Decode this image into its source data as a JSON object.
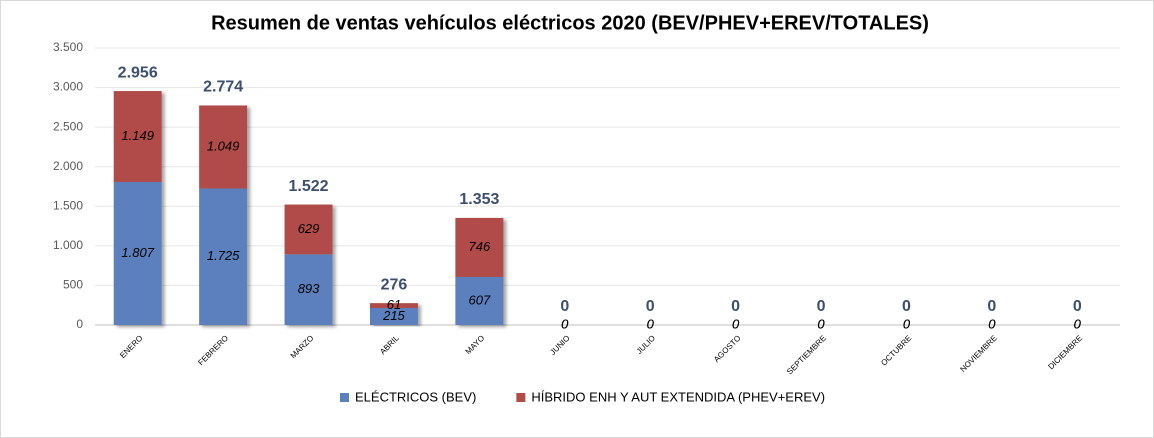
{
  "chart_data": {
    "type": "stacked_bar",
    "title": "Resumen de ventas vehículos eléctricos 2020 (BEV/PHEV+EREV/TOTALES)",
    "categories": [
      "ENERO",
      "FEBRERO",
      "MARZO",
      "ABRIL",
      "MAYO",
      "JUNIO",
      "JULIO",
      "AGOSTO",
      "SEPTIEMBRE",
      "OCTUBRE",
      "NOVIEMBRE",
      "DICIEMBRE"
    ],
    "series": [
      {
        "name": "ELÉCTRICOS (BEV)",
        "color": "#5b80bd",
        "values": [
          1807,
          1725,
          893,
          215,
          607,
          0,
          0,
          0,
          0,
          0,
          0,
          0
        ],
        "value_labels": [
          "1.807",
          "1.725",
          "893",
          "215",
          "607",
          "0",
          "0",
          "0",
          "0",
          "0",
          "0",
          "0"
        ]
      },
      {
        "name": "HÍBRIDO ENH Y AUT EXTENDIDA (PHEV+EREV)",
        "color": "#b04c4a",
        "values": [
          1149,
          1049,
          629,
          61,
          746,
          0,
          0,
          0,
          0,
          0,
          0,
          0
        ],
        "value_labels": [
          "1.149",
          "1.049",
          "629",
          "61",
          "746",
          "0",
          "0",
          "0",
          "0",
          "0",
          "0",
          "0"
        ]
      }
    ],
    "totals": {
      "values": [
        2956,
        2774,
        1522,
        276,
        1353,
        0,
        0,
        0,
        0,
        0,
        0,
        0
      ],
      "value_labels": [
        "2.956",
        "2.774",
        "1.522",
        "276",
        "1.353",
        "0",
        "0",
        "0",
        "0",
        "0",
        "0",
        "0"
      ]
    },
    "ylim": [
      0,
      3500
    ],
    "yticks": [
      0,
      500,
      {
        "value": 1000,
        "label": "1.000"
      },
      {
        "value": 1500,
        "label": "1.500"
      },
      {
        "value": 2000,
        "label": "2.000"
      },
      {
        "value": 2500,
        "label": "2.500"
      },
      {
        "value": 3000,
        "label": "3.000"
      },
      {
        "value": 3500,
        "label": "3.500"
      }
    ],
    "grid": true,
    "legend": "bottom"
  }
}
